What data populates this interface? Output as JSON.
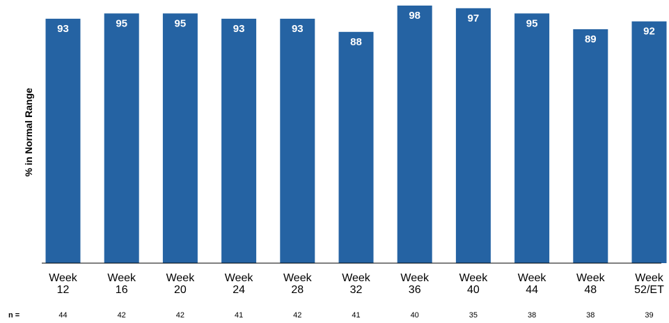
{
  "chart_data": {
    "type": "bar",
    "ylabel": "% in Normal Range",
    "categories": [
      [
        "Week",
        "12"
      ],
      [
        "Week",
        "16"
      ],
      [
        "Week",
        "20"
      ],
      [
        "Week",
        "24"
      ],
      [
        "Week",
        "28"
      ],
      [
        "Week",
        "32"
      ],
      [
        "Week",
        "36"
      ],
      [
        "Week",
        "40"
      ],
      [
        "Week",
        "44"
      ],
      [
        "Week",
        "48"
      ],
      [
        "Week",
        "52/ET"
      ]
    ],
    "values": [
      93,
      95,
      95,
      93,
      93,
      88,
      98,
      97,
      95,
      89,
      92
    ],
    "n_label": "n =",
    "n_values": [
      44,
      42,
      42,
      41,
      42,
      41,
      40,
      35,
      38,
      38,
      39
    ],
    "ylim": [
      0,
      100
    ],
    "grid": false,
    "bar_color": "#2563A3",
    "value_label_color": "#FFFFFF"
  }
}
